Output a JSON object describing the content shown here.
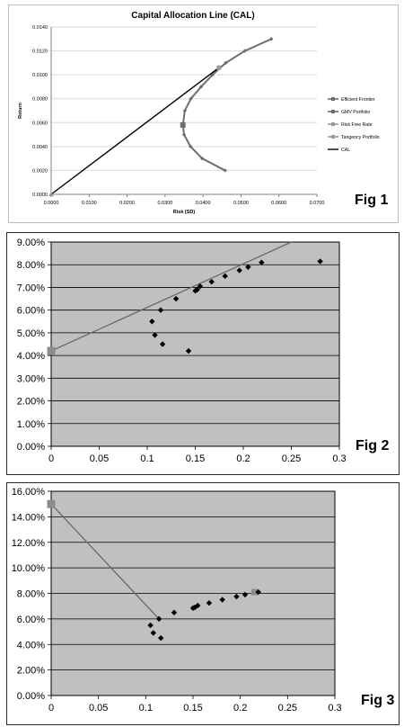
{
  "figures": [
    {
      "id": "fig1",
      "label": "Fig 1",
      "colors": {
        "frontier": "#6e6e6e",
        "gmv": "#6e6e6e",
        "risk_free": "#9a9a9a",
        "tangency": "#9a9a9a",
        "cal": "#000000",
        "grid": "#d9d9d9"
      }
    },
    {
      "id": "fig2",
      "label": "Fig 2",
      "colors": {
        "background": "#c0c0c0",
        "grid": "#000000",
        "points": "#000000",
        "line": "#6a6a6a",
        "special": "#8c8c8c"
      }
    },
    {
      "id": "fig3",
      "label": "Fig 3",
      "colors": {
        "background": "#c0c0c0",
        "grid": "#000000",
        "points": "#000000",
        "line": "#6a6a6a",
        "special": "#8c8c8c"
      }
    }
  ],
  "chart_data": [
    {
      "type": "line",
      "title": "Capital Allocation Line (CAL)",
      "xlabel": "Risk (SD)",
      "ylabel": "Return",
      "xlim": [
        0,
        0.07
      ],
      "ylim": [
        0,
        0.014
      ],
      "x_ticks": [
        "0.0000",
        "0.0100",
        "0.0200",
        "0.0300",
        "0.0400",
        "0.0500",
        "0.0600",
        "0.0700"
      ],
      "y_ticks": [
        "0.0000",
        "0.0020",
        "0.0040",
        "0.0060",
        "0.0080",
        "0.0100",
        "0.0120",
        "0.0140"
      ],
      "grid": "horizontal",
      "legend_position": "right",
      "series": [
        {
          "name": "Efficient Frontier",
          "points": [
            [
              0.0458,
              0.002
            ],
            [
              0.0398,
              0.003
            ],
            [
              0.0367,
              0.004
            ],
            [
              0.035,
              0.005
            ],
            [
              0.0347,
              0.0058
            ],
            [
              0.0352,
              0.007
            ],
            [
              0.0368,
              0.008
            ],
            [
              0.0395,
              0.009
            ],
            [
              0.0425,
              0.01
            ],
            [
              0.046,
              0.011
            ],
            [
              0.051,
              0.012
            ],
            [
              0.058,
              0.013
            ]
          ]
        },
        {
          "name": "GMV Portfolio",
          "points": [
            [
              0.0347,
              0.0058
            ]
          ]
        },
        {
          "name": "Risk Free Rate",
          "points": [
            [
              0.0,
              0.0
            ]
          ]
        },
        {
          "name": "Tangency Portfolio",
          "points": [
            [
              0.0442,
              0.0106
            ]
          ]
        },
        {
          "name": "CAL",
          "points": [
            [
              0.0,
              0.0
            ],
            [
              0.0442,
              0.0106
            ]
          ]
        }
      ]
    },
    {
      "type": "scatter",
      "xlim": [
        0,
        0.3
      ],
      "ylim": [
        0,
        0.09
      ],
      "x_ticks": [
        "0",
        "0.05",
        "0.1",
        "0.15",
        "0.2",
        "0.25",
        "0.3"
      ],
      "y_ticks": [
        "0.00%",
        "1.00%",
        "2.00%",
        "3.00%",
        "4.00%",
        "5.00%",
        "6.00%",
        "7.00%",
        "8.00%",
        "9.00%"
      ],
      "grid": "horizontal",
      "points": [
        [
          0.143,
          0.042
        ],
        [
          0.116,
          0.045
        ],
        [
          0.108,
          0.049
        ],
        [
          0.105,
          0.055
        ],
        [
          0.114,
          0.06
        ],
        [
          0.13,
          0.065
        ],
        [
          0.15,
          0.0685
        ],
        [
          0.152,
          0.069
        ],
        [
          0.155,
          0.0705
        ],
        [
          0.167,
          0.0725
        ],
        [
          0.181,
          0.075
        ],
        [
          0.196,
          0.0775
        ],
        [
          0.205,
          0.079
        ],
        [
          0.219,
          0.081
        ],
        [
          0.28,
          0.0815
        ]
      ],
      "risk_free_point": [
        0.0,
        0.042
      ],
      "line": [
        [
          0.0,
          0.042
        ],
        [
          0.25,
          0.09
        ]
      ]
    },
    {
      "type": "scatter",
      "xlim": [
        0,
        0.3
      ],
      "ylim": [
        0,
        0.16
      ],
      "x_ticks": [
        "0",
        "0.05",
        "0.1",
        "0.15",
        "0.2",
        "0.25",
        "0.3"
      ],
      "y_ticks": [
        "0.00%",
        "2.00%",
        "4.00%",
        "6.00%",
        "8.00%",
        "10.00%",
        "12.00%",
        "14.00%",
        "16.00%"
      ],
      "grid": "horizontal",
      "points": [
        [
          0.105,
          0.055
        ],
        [
          0.108,
          0.049
        ],
        [
          0.116,
          0.045
        ],
        [
          0.114,
          0.06
        ],
        [
          0.13,
          0.065
        ],
        [
          0.15,
          0.0685
        ],
        [
          0.152,
          0.069
        ],
        [
          0.155,
          0.0705
        ],
        [
          0.167,
          0.0725
        ],
        [
          0.181,
          0.075
        ],
        [
          0.196,
          0.0775
        ],
        [
          0.205,
          0.079
        ],
        [
          0.219,
          0.081
        ]
      ],
      "special_points": [
        [
          0.0,
          0.15
        ],
        [
          0.215,
          0.081
        ]
      ],
      "line": [
        [
          0.0,
          0.15
        ],
        [
          0.114,
          0.06
        ]
      ]
    }
  ]
}
